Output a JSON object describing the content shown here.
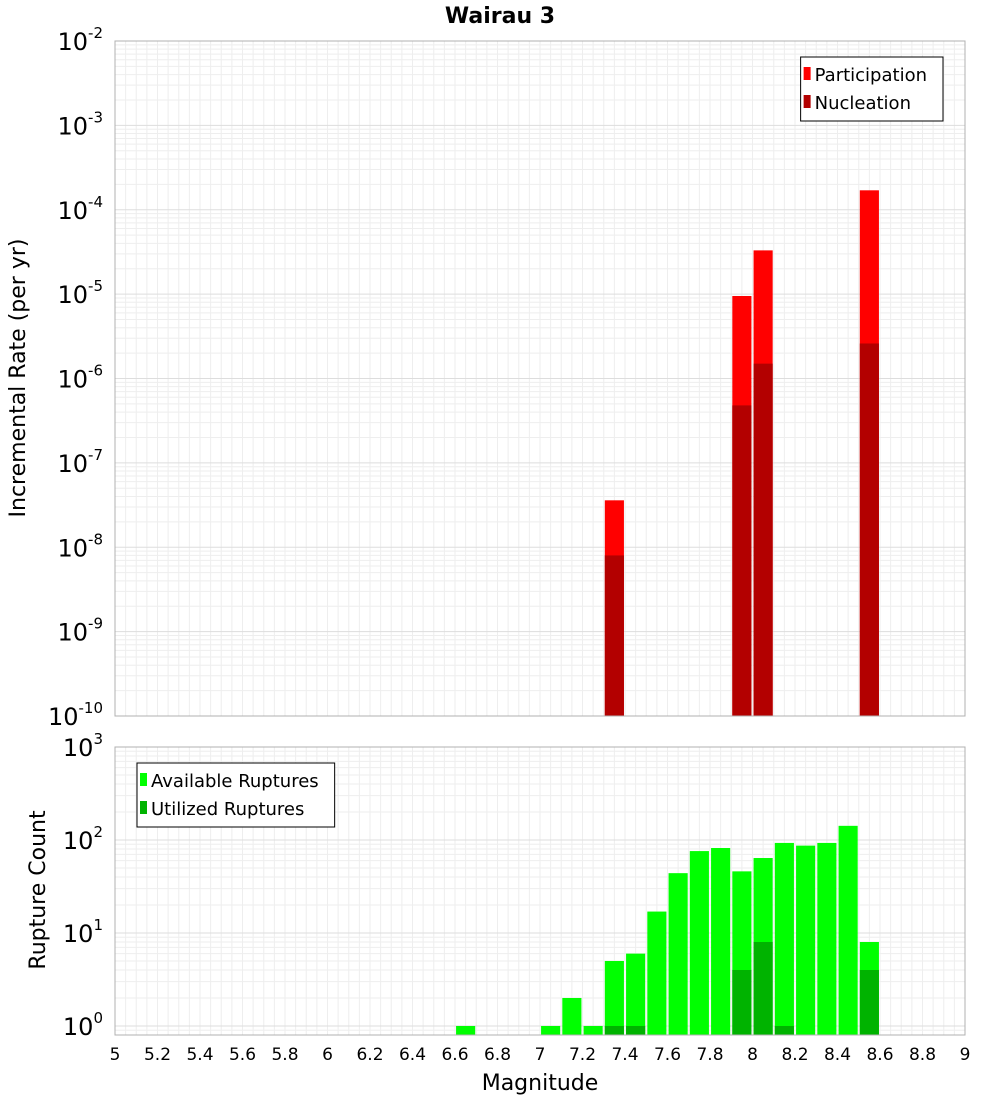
{
  "chart_data": [
    {
      "type": "bar",
      "title": "Wairau 3",
      "xlabel": "",
      "ylabel": "Incremental Rate (per yr)",
      "yscale": "log",
      "ylim": [
        1e-10,
        0.01
      ],
      "xlim": [
        5,
        9
      ],
      "y_ticks": [
        {
          "base": "10",
          "exp": "-10",
          "value": 1e-10
        },
        {
          "base": "10",
          "exp": "-9",
          "value": 1e-09
        },
        {
          "base": "10",
          "exp": "-8",
          "value": 1e-08
        },
        {
          "base": "10",
          "exp": "-7",
          "value": 1e-07
        },
        {
          "base": "10",
          "exp": "-6",
          "value": 1e-06
        },
        {
          "base": "10",
          "exp": "-5",
          "value": 1e-05
        },
        {
          "base": "10",
          "exp": "-4",
          "value": 0.0001
        },
        {
          "base": "10",
          "exp": "-3",
          "value": 0.001
        },
        {
          "base": "10",
          "exp": "-2",
          "value": 0.01
        }
      ],
      "grid": true,
      "legend": {
        "position": "top-right",
        "entries": [
          {
            "label": "Participation",
            "color": "#ff0000"
          },
          {
            "label": "Nucleation",
            "color": "#b30000"
          }
        ]
      },
      "bar_width": 0.09,
      "series": [
        {
          "name": "Participation",
          "color": "#ff0000",
          "x": [
            7.35,
            7.95,
            8.05,
            8.55
          ],
          "values": [
            3.6e-08,
            9.5e-06,
            3.3e-05,
            0.00017
          ]
        },
        {
          "name": "Nucleation",
          "color": "#b30000",
          "x": [
            7.35,
            7.95,
            8.05,
            8.55
          ],
          "values": [
            8e-09,
            4.8e-07,
            1.5e-06,
            2.6e-06
          ]
        }
      ]
    },
    {
      "type": "bar",
      "title": "",
      "xlabel": "Magnitude",
      "ylabel": "Rupture Count",
      "yscale": "log",
      "ylim": [
        0.8,
        1000
      ],
      "xlim": [
        5,
        9
      ],
      "x_ticks": [
        "5",
        "5.2",
        "5.4",
        "5.6",
        "5.8",
        "6",
        "6.2",
        "6.4",
        "6.6",
        "6.8",
        "7",
        "7.2",
        "7.4",
        "7.6",
        "7.8",
        "8",
        "8.2",
        "8.4",
        "8.6",
        "8.8",
        "9"
      ],
      "y_ticks": [
        {
          "base": "10",
          "exp": "0",
          "value": 1
        },
        {
          "base": "10",
          "exp": "1",
          "value": 10
        },
        {
          "base": "10",
          "exp": "2",
          "value": 100
        },
        {
          "base": "10",
          "exp": "3",
          "value": 1000
        }
      ],
      "grid": true,
      "legend": {
        "position": "top-left",
        "entries": [
          {
            "label": "Available Ruptures",
            "color": "#00ff00"
          },
          {
            "label": "Utilized Ruptures",
            "color": "#00b300"
          }
        ]
      },
      "bar_width": 0.09,
      "series": [
        {
          "name": "Available Ruptures",
          "color": "#00ff00",
          "x": [
            6.65,
            7.05,
            7.15,
            7.25,
            7.35,
            7.45,
            7.55,
            7.65,
            7.75,
            7.85,
            7.95,
            8.05,
            8.15,
            8.25,
            8.35,
            8.45,
            8.55
          ],
          "values": [
            1,
            1,
            2,
            1,
            5,
            6,
            17,
            44,
            76,
            82,
            46,
            64,
            93,
            87,
            93,
            142,
            8
          ]
        },
        {
          "name": "Utilized Ruptures",
          "color": "#00b300",
          "x": [
            7.35,
            7.45,
            7.95,
            8.05,
            8.15,
            8.55
          ],
          "values": [
            1,
            1,
            4,
            8,
            1,
            4
          ]
        }
      ]
    }
  ]
}
